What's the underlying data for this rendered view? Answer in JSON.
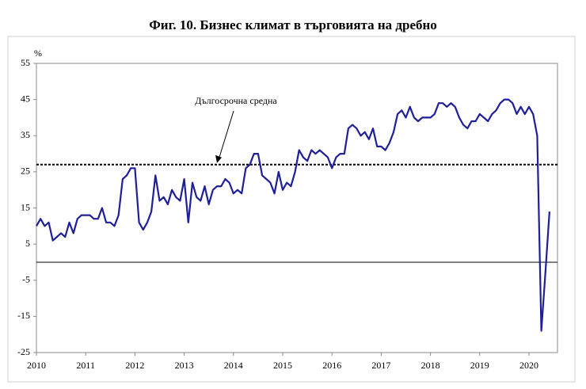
{
  "chart_data": {
    "type": "line",
    "title": "Фиг. 10. Бизнес климат в търговията на дребно",
    "y_unit": "%",
    "annotation": "Дългосрочна средна",
    "reference_line": 27,
    "categories": [
      "2010",
      null,
      null,
      null,
      null,
      null,
      null,
      null,
      null,
      null,
      null,
      null,
      "2011",
      null,
      null,
      null,
      null,
      null,
      null,
      null,
      null,
      null,
      null,
      null,
      "2012",
      null,
      null,
      null,
      null,
      null,
      null,
      null,
      null,
      null,
      null,
      null,
      "2013",
      null,
      null,
      null,
      null,
      null,
      null,
      null,
      null,
      null,
      null,
      null,
      "2014",
      null,
      null,
      null,
      null,
      null,
      null,
      null,
      null,
      null,
      null,
      null,
      "2015",
      null,
      null,
      null,
      null,
      null,
      null,
      null,
      null,
      null,
      null,
      null,
      "2016",
      null,
      null,
      null,
      null,
      null,
      null,
      null,
      null,
      null,
      null,
      null,
      "2017",
      null,
      null,
      null,
      null,
      null,
      null,
      null,
      null,
      null,
      null,
      null,
      "2018",
      null,
      null,
      null,
      null,
      null,
      null,
      null,
      null,
      null,
      null,
      null,
      "2019",
      null,
      null,
      null,
      null,
      null,
      null,
      null,
      null,
      null,
      null,
      null,
      "2020",
      null,
      null,
      null,
      null,
      null
    ],
    "series": [
      {
        "name": "Бизнес климат",
        "color": "#1f1f99",
        "values": [
          10,
          12,
          10,
          11,
          6,
          7,
          8,
          7,
          11,
          8,
          12,
          13,
          13,
          13,
          12,
          12,
          15,
          11,
          11,
          10,
          13,
          23,
          24,
          26,
          26,
          11,
          9,
          11,
          14,
          24,
          17,
          18,
          16,
          20,
          18,
          17,
          23,
          11,
          22,
          18,
          17,
          21,
          16,
          20,
          21,
          21,
          23,
          22,
          19,
          20,
          19,
          26,
          27,
          30,
          30,
          24,
          23,
          22,
          19,
          25,
          20,
          22,
          21,
          25,
          31,
          29,
          28,
          31,
          30,
          31,
          30,
          29,
          26,
          29,
          30,
          30,
          37,
          38,
          37,
          35,
          36,
          34,
          37,
          32,
          32,
          31,
          33,
          36,
          41,
          42,
          40,
          43,
          40,
          39,
          40,
          40,
          40,
          41,
          44,
          44,
          43,
          44,
          43,
          40,
          38,
          37,
          39,
          39,
          41,
          40,
          39,
          41,
          42,
          44,
          45,
          45,
          44,
          41,
          43,
          41,
          43,
          41,
          35,
          -19,
          -3,
          14
        ]
      }
    ],
    "ylim": [
      -25,
      55
    ],
    "yticks": [
      55,
      45,
      35,
      25,
      15,
      5,
      -5,
      -15,
      -25
    ]
  }
}
